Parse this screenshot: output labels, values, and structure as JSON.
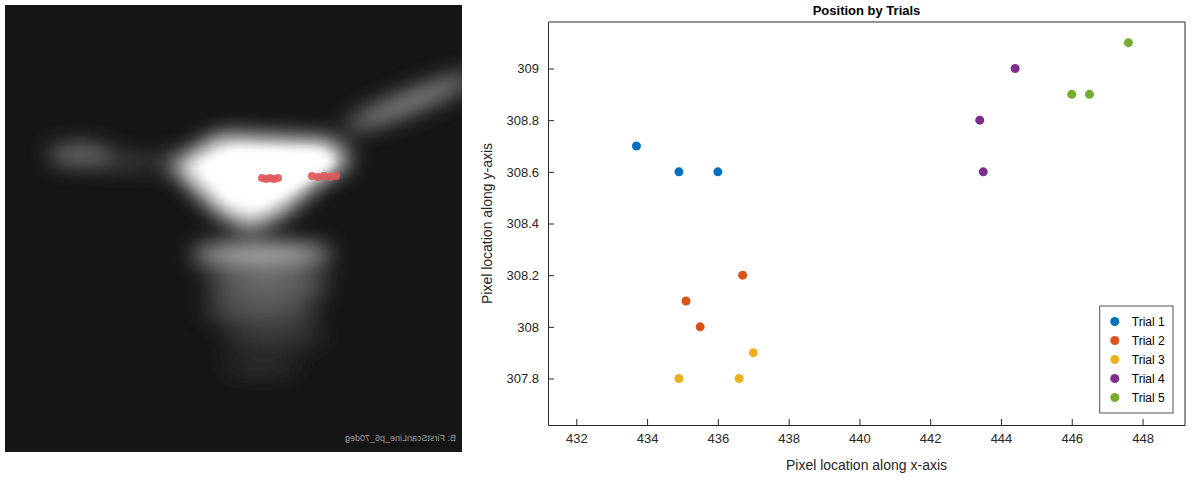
{
  "image": {
    "caption": "B: FirstScanLine_p6_70deg"
  },
  "chart_data": {
    "type": "scatter",
    "title": "Position by Trials",
    "x_label": "Pixel location along x-axis",
    "y_label": "Pixel location along y-axis",
    "xlim": [
      431.2,
      449.2
    ],
    "xticks": [
      432,
      434,
      436,
      438,
      440,
      442,
      444,
      446,
      448
    ],
    "ylim": [
      307.62,
      309.18
    ],
    "yticks": [
      307.8,
      308,
      308.2,
      308.4,
      308.6,
      308.8,
      309
    ],
    "grid": false,
    "legend": "lower right",
    "marker": "circle",
    "series": [
      {
        "name": "Trial 1",
        "color": "#0072BD",
        "x": [
          433.7,
          434.9,
          436.0
        ],
        "values": [
          308.7,
          308.6,
          308.6
        ]
      },
      {
        "name": "Trial 2",
        "color": "#D95319",
        "x": [
          436.7,
          435.1,
          435.5
        ],
        "values": [
          308.2,
          308.1,
          308.0
        ]
      },
      {
        "name": "Trial 3",
        "color": "#EDB120",
        "x": [
          434.9,
          436.6,
          437.0
        ],
        "values": [
          307.8,
          307.8,
          307.9
        ]
      },
      {
        "name": "Trial 4",
        "color": "#7E2F8E",
        "x": [
          444.4,
          443.4,
          443.5
        ],
        "values": [
          309.0,
          308.8,
          308.6
        ]
      },
      {
        "name": "Trial 5",
        "color": "#77AC30",
        "x": [
          447.6,
          446.0,
          446.5
        ],
        "values": [
          309.1,
          308.9,
          308.9
        ]
      }
    ]
  }
}
